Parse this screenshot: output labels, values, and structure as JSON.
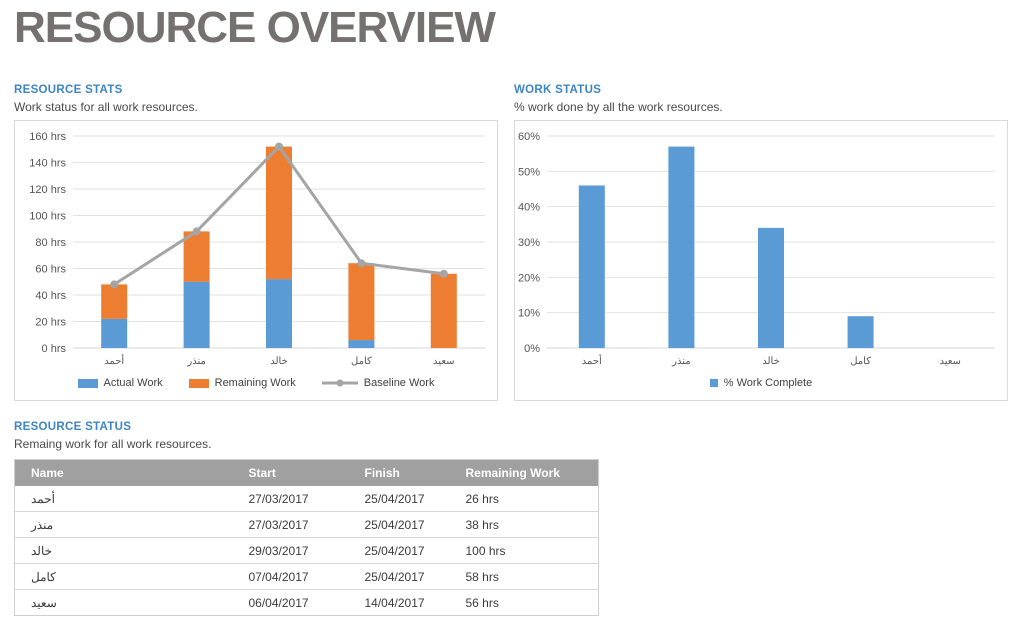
{
  "page": {
    "title": "RESOURCE OVERVIEW"
  },
  "colors": {
    "accent_blue": "#5B9BD5",
    "accent_orange": "#ED7D31",
    "accent_gray": "#A5A5A5",
    "heading_blue": "#3E85C5",
    "title_gray": "#767171",
    "table_header_bg": "#A0A0A0",
    "gridline": "#E2E2E2"
  },
  "sections": {
    "resource_stats": {
      "heading": "RESOURCE STATS",
      "subtitle": "Work status for all work resources."
    },
    "work_status": {
      "heading": "WORK STATUS",
      "subtitle": "% work done by all the work resources."
    },
    "resource_status": {
      "heading": "RESOURCE STATUS",
      "subtitle": "Remaing work for all work resources."
    }
  },
  "chart_data": [
    {
      "type": "bar",
      "subtype": "stacked-bars-with-line",
      "title": "RESOURCE STATS",
      "categories": [
        "أحمد",
        "منذر",
        "خالد",
        "كامل",
        "سعيد"
      ],
      "series": [
        {
          "name": "Actual Work",
          "kind": "bar",
          "color": "#5B9BD5",
          "values": [
            22,
            50,
            52,
            6,
            0
          ]
        },
        {
          "name": "Remaining Work",
          "kind": "bar",
          "color": "#ED7D31",
          "values": [
            26,
            38,
            100,
            58,
            56
          ]
        },
        {
          "name": "Baseline Work",
          "kind": "line",
          "color": "#A5A5A5",
          "values": [
            48,
            88,
            152,
            64,
            56
          ]
        }
      ],
      "ylim": [
        0,
        160
      ],
      "ytick_step": 20,
      "ytick_suffix": " hrs",
      "grid": true,
      "legend_position": "bottom"
    },
    {
      "type": "bar",
      "subtype": "single-series",
      "title": "WORK STATUS",
      "categories": [
        "أحمد",
        "منذر",
        "خالد",
        "كامل",
        "سعيد"
      ],
      "series": [
        {
          "name": "% Work Complete",
          "kind": "bar",
          "color": "#5B9BD5",
          "values": [
            46,
            57,
            34,
            9,
            0
          ]
        }
      ],
      "ylim": [
        0,
        60
      ],
      "ytick_step": 10,
      "ytick_suffix": "%",
      "grid": true,
      "legend_position": "bottom"
    }
  ],
  "table": {
    "headers": [
      "Name",
      "Start",
      "Finish",
      "Remaining Work"
    ],
    "rows": [
      [
        "أحمد",
        "27/03/2017",
        "25/04/2017",
        "26 hrs"
      ],
      [
        "منذر",
        "27/03/2017",
        "25/04/2017",
        "38 hrs"
      ],
      [
        "خالد",
        "29/03/2017",
        "25/04/2017",
        "100 hrs"
      ],
      [
        "كامل",
        "07/04/2017",
        "25/04/2017",
        "58 hrs"
      ],
      [
        "سعيد",
        "06/04/2017",
        "14/04/2017",
        "56 hrs"
      ]
    ]
  }
}
